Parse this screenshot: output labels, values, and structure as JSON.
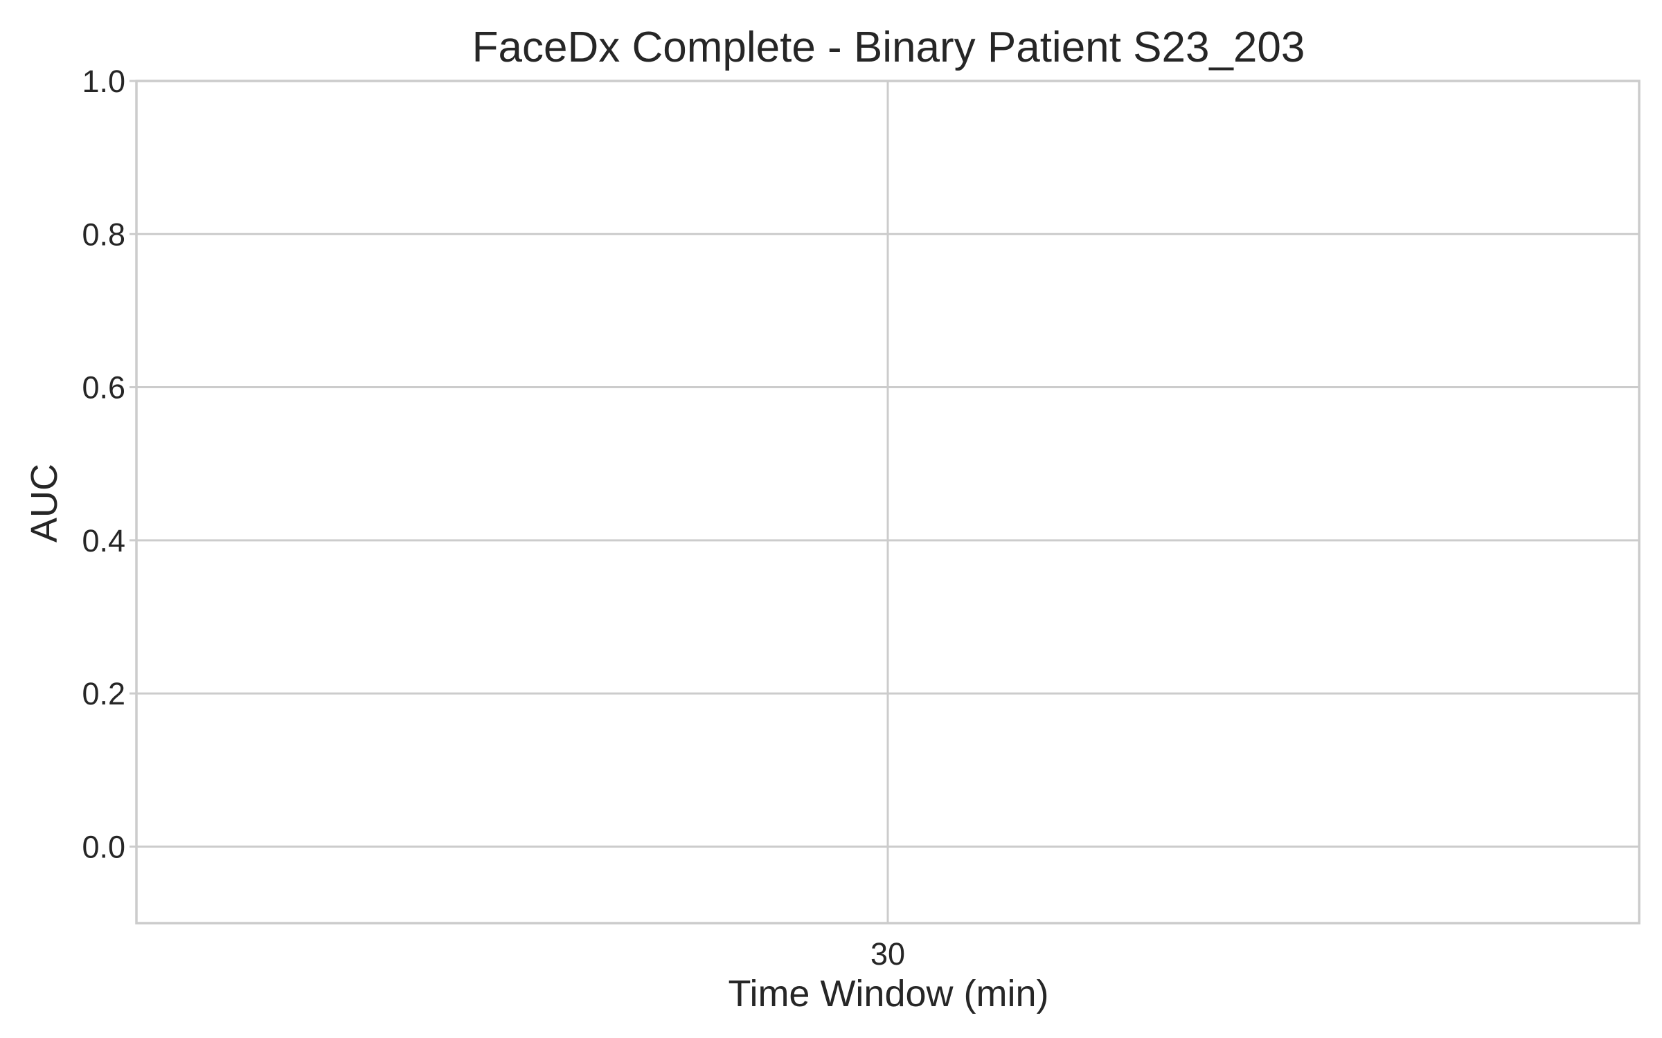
{
  "chart_data": {
    "type": "line",
    "title": "FaceDx Complete - Binary Patient S23_203",
    "xlabel": "Time Window (min)",
    "ylabel": "AUC",
    "x": [
      30
    ],
    "x_tick_labels": [
      "30"
    ],
    "ylim": [
      -0.1,
      1.0
    ],
    "y_ticks": [
      0.0,
      0.2,
      0.4,
      0.6,
      0.8,
      1.0
    ],
    "y_tick_labels": [
      "0.0",
      "0.2",
      "0.4",
      "0.6",
      "0.8",
      "1.0"
    ],
    "series": [],
    "grid": true,
    "legend": "none",
    "colors": {
      "grid": "#cccccc",
      "text": "#262626",
      "background": "#ffffff"
    }
  }
}
